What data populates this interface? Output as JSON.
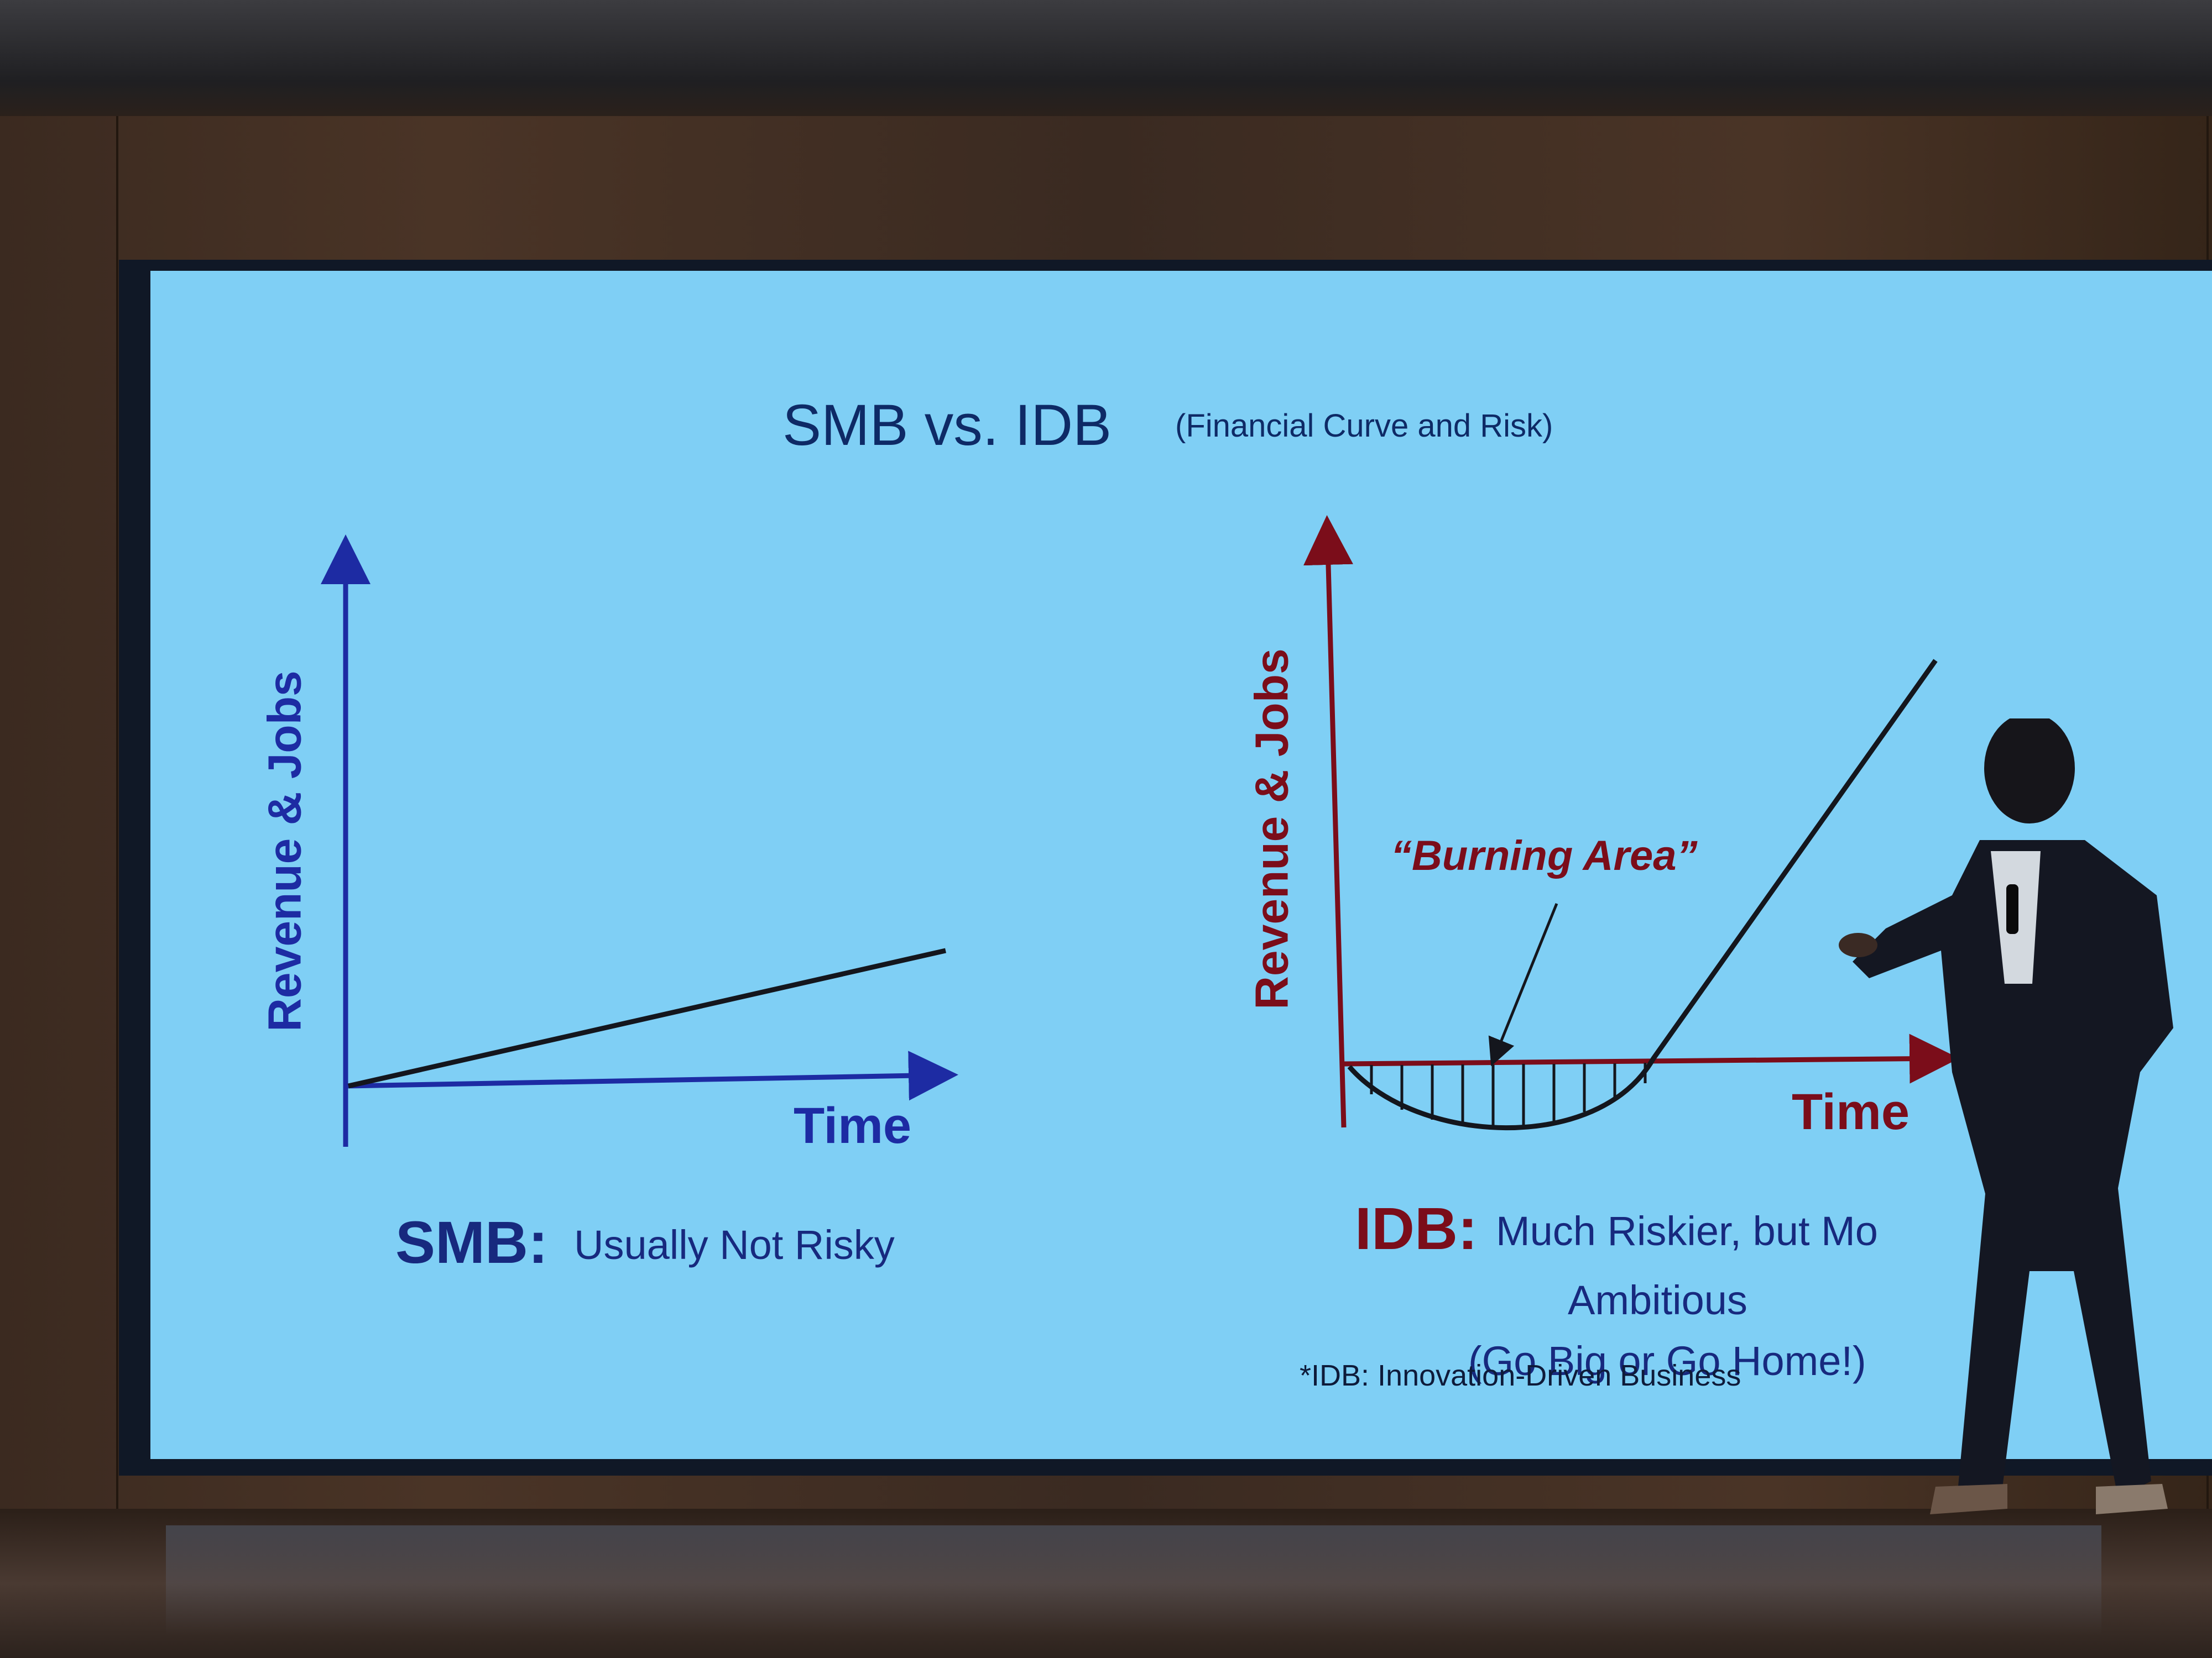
{
  "slide": {
    "title": "SMB vs. IDB",
    "subtitle": "(Financial Curve and Risk)",
    "left_chart": {
      "y_label": "Revenue & Jobs",
      "x_label": "Time",
      "caption_head": "SMB:",
      "caption_text": "Usually Not Risky"
    },
    "right_chart": {
      "y_label": "Revenue & Jobs",
      "x_label": "Time",
      "annotation": "“Burning Area”",
      "caption_head": "IDB:",
      "caption_text_line1": "Much Riskier, but Mo",
      "caption_text_line2": "Ambitious",
      "caption_text_line3": "(Go Big or Go Home!)"
    },
    "footnote": "*IDB: Innovation-Driven Business"
  },
  "colors": {
    "screen_bg": "#7fcff5",
    "smb_blue": "#1d2ba3",
    "idb_red": "#7b0d1a",
    "title_navy": "#0e2a66"
  }
}
